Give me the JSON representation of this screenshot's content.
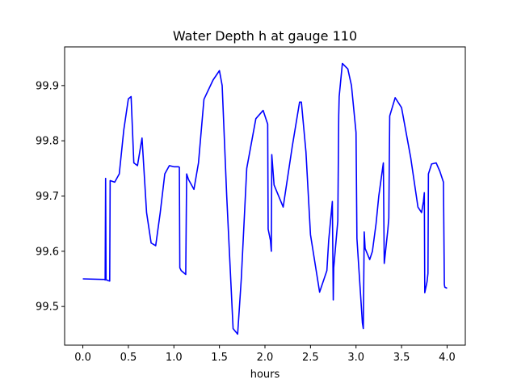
{
  "chart_data": {
    "type": "line",
    "title": "Water Depth h at gauge 110",
    "xlabel": "hours",
    "ylabel": "",
    "xlim": [
      -0.2,
      4.2
    ],
    "ylim": [
      99.43,
      99.97
    ],
    "xticks": [
      0.0,
      0.5,
      1.0,
      1.5,
      2.0,
      2.5,
      3.0,
      3.5,
      4.0
    ],
    "xtick_labels": [
      "0.0",
      "0.5",
      "1.0",
      "1.5",
      "2.0",
      "2.5",
      "3.0",
      "3.5",
      "4.0"
    ],
    "yticks": [
      99.5,
      99.6,
      99.7,
      99.8,
      99.9
    ],
    "ytick_labels": [
      "99.5",
      "99.6",
      "99.7",
      "99.8",
      "99.9"
    ],
    "grid": false,
    "series": [
      {
        "color": "#0000ff",
        "x": [
          0.0,
          0.24,
          0.245,
          0.25,
          0.255,
          0.26,
          0.295,
          0.3,
          0.35,
          0.4,
          0.45,
          0.5,
          0.53,
          0.56,
          0.6,
          0.65,
          0.7,
          0.75,
          0.8,
          0.85,
          0.9,
          0.95,
          1.0,
          1.05,
          1.06,
          1.065,
          1.08,
          1.13,
          1.14,
          1.16,
          1.22,
          1.27,
          1.33,
          1.43,
          1.5,
          1.53,
          1.58,
          1.65,
          1.7,
          1.74,
          1.8,
          1.9,
          1.98,
          2.03,
          2.035,
          2.06,
          2.07,
          2.075,
          2.1,
          2.2,
          2.3,
          2.38,
          2.4,
          2.45,
          2.5,
          2.6,
          2.68,
          2.7,
          2.74,
          2.75,
          2.755,
          2.8,
          2.81,
          2.815,
          2.85,
          2.91,
          2.95,
          3.0,
          3.01,
          3.07,
          3.08,
          3.09,
          3.1,
          3.15,
          3.18,
          3.22,
          3.25,
          3.3,
          3.31,
          3.35,
          3.36,
          3.37,
          3.43,
          3.5,
          3.6,
          3.68,
          3.72,
          3.74,
          3.75,
          3.755,
          3.78,
          3.79,
          3.795,
          3.83,
          3.88,
          3.92,
          3.96,
          3.97,
          3.975,
          4.0
        ],
        "y": [
          99.55,
          99.549,
          99.548,
          99.732,
          99.55,
          99.548,
          99.546,
          99.728,
          99.725,
          99.74,
          99.82,
          99.876,
          99.88,
          99.76,
          99.755,
          99.805,
          99.67,
          99.615,
          99.61,
          99.67,
          99.74,
          99.755,
          99.753,
          99.753,
          99.752,
          99.57,
          99.565,
          99.558,
          99.74,
          99.73,
          99.712,
          99.76,
          99.875,
          99.91,
          99.927,
          99.9,
          99.7,
          99.46,
          99.45,
          99.55,
          99.75,
          99.84,
          99.855,
          99.83,
          99.64,
          99.62,
          99.6,
          99.775,
          99.72,
          99.68,
          99.79,
          99.87,
          99.87,
          99.78,
          99.63,
          99.526,
          99.565,
          99.62,
          99.69,
          99.512,
          99.57,
          99.655,
          99.845,
          99.88,
          99.94,
          99.93,
          99.9,
          99.815,
          99.623,
          99.47,
          99.46,
          99.635,
          99.605,
          99.585,
          99.6,
          99.65,
          99.7,
          99.76,
          99.578,
          99.64,
          99.66,
          99.845,
          99.878,
          99.86,
          99.77,
          99.68,
          99.67,
          99.69,
          99.706,
          99.525,
          99.545,
          99.56,
          99.74,
          99.758,
          99.76,
          99.745,
          99.725,
          99.54,
          99.535,
          99.533
        ]
      }
    ]
  }
}
